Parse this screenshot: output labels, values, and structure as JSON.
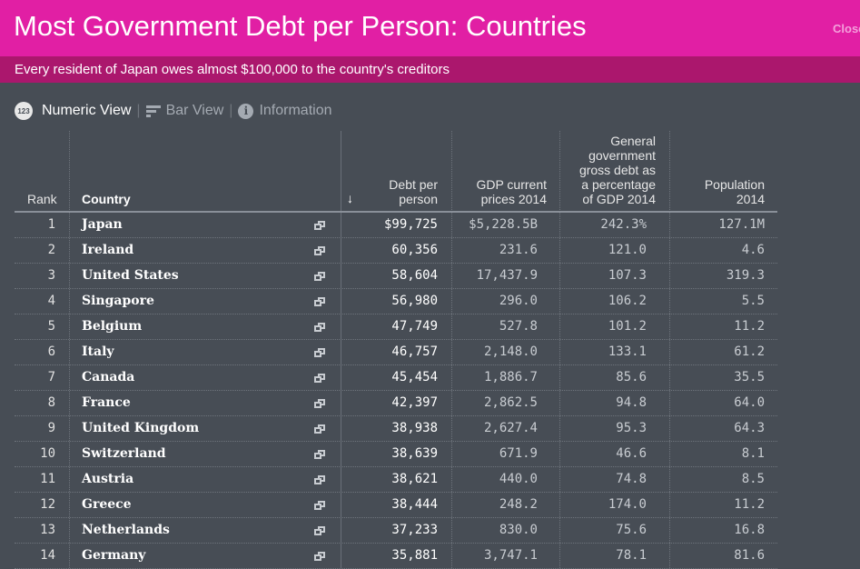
{
  "header": {
    "title": "Most Government Debt per Person: Countries",
    "close_label": "Close",
    "subtitle": "Every resident of Japan owes almost $100,000 to the country's creditors"
  },
  "colors": {
    "header_bg": "#e11fa4",
    "subheader_bg": "#ab176d",
    "page_bg": "#474d55"
  },
  "views": {
    "numeric": "Numeric View",
    "bar": "Bar View",
    "info": "Information",
    "numeric_icon": "123"
  },
  "columns": {
    "rank": "Rank",
    "country": "Country",
    "debt": "Debt per person",
    "gdp": "GDP current prices 2014",
    "pct": "General government gross debt as a percentage of GDP 2014",
    "pop": "Population 2014",
    "sort_indicator": "↓"
  },
  "rows": [
    {
      "rank": "1",
      "country": "Japan",
      "debt": "$99,725",
      "gdp": "$5,228.5B",
      "pct": "242.3%",
      "pop": "127.1M"
    },
    {
      "rank": "2",
      "country": "Ireland",
      "debt": "60,356",
      "gdp": "231.6",
      "pct": "121.0",
      "pop": "4.6"
    },
    {
      "rank": "3",
      "country": "United States",
      "debt": "58,604",
      "gdp": "17,437.9",
      "pct": "107.3",
      "pop": "319.3"
    },
    {
      "rank": "4",
      "country": "Singapore",
      "debt": "56,980",
      "gdp": "296.0",
      "pct": "106.2",
      "pop": "5.5"
    },
    {
      "rank": "5",
      "country": "Belgium",
      "debt": "47,749",
      "gdp": "527.8",
      "pct": "101.2",
      "pop": "11.2"
    },
    {
      "rank": "6",
      "country": "Italy",
      "debt": "46,757",
      "gdp": "2,148.0",
      "pct": "133.1",
      "pop": "61.2"
    },
    {
      "rank": "7",
      "country": "Canada",
      "debt": "45,454",
      "gdp": "1,886.7",
      "pct": "85.6",
      "pop": "35.5"
    },
    {
      "rank": "8",
      "country": "France",
      "debt": "42,397",
      "gdp": "2,862.5",
      "pct": "94.8",
      "pop": "64.0"
    },
    {
      "rank": "9",
      "country": "United Kingdom",
      "debt": "38,938",
      "gdp": "2,627.4",
      "pct": "95.3",
      "pop": "64.3"
    },
    {
      "rank": "10",
      "country": "Switzerland",
      "debt": "38,639",
      "gdp": "671.9",
      "pct": "46.6",
      "pop": "8.1"
    },
    {
      "rank": "11",
      "country": "Austria",
      "debt": "38,621",
      "gdp": "440.0",
      "pct": "74.8",
      "pop": "8.5"
    },
    {
      "rank": "12",
      "country": "Greece",
      "debt": "38,444",
      "gdp": "248.2",
      "pct": "174.0",
      "pop": "11.2"
    },
    {
      "rank": "13",
      "country": "Netherlands",
      "debt": "37,233",
      "gdp": "830.0",
      "pct": "75.6",
      "pop": "16.8"
    },
    {
      "rank": "14",
      "country": "Germany",
      "debt": "35,881",
      "gdp": "3,747.1",
      "pct": "78.1",
      "pop": "81.6"
    }
  ]
}
